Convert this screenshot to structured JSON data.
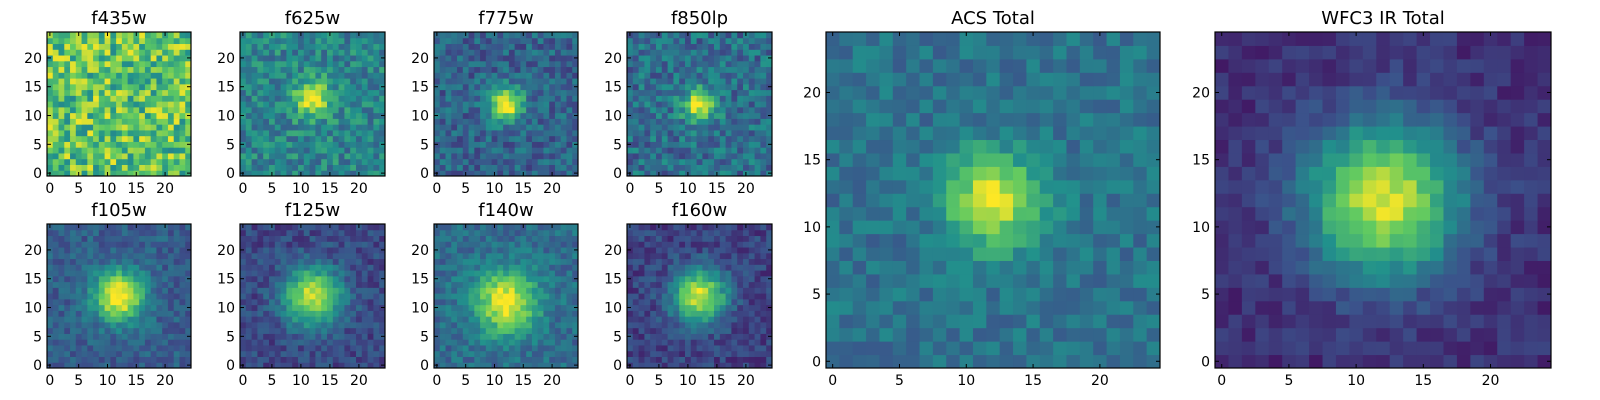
{
  "figure": {
    "colormap": "viridis",
    "viridis_stops": [
      "#440154",
      "#3b528b",
      "#21918c",
      "#5ec962",
      "#fde725"
    ],
    "frame_color": "#000000"
  },
  "chart_data": [
    {
      "type": "heatmap",
      "id": "f435w",
      "title": "f435w",
      "grid": 25,
      "xticks": [
        0,
        5,
        10,
        15,
        20
      ],
      "yticks": [
        0,
        5,
        10,
        15,
        20
      ],
      "peak": [
        12,
        12
      ],
      "sigma": 3.0,
      "amplitude": 0.0,
      "background": 0.72,
      "noise": 0.26,
      "seed": 11
    },
    {
      "type": "heatmap",
      "id": "f625w",
      "title": "f625w",
      "grid": 25,
      "xticks": [
        0,
        5,
        10,
        15,
        20
      ],
      "yticks": [
        0,
        5,
        10,
        15,
        20
      ],
      "peak": [
        12,
        13
      ],
      "sigma": 2.2,
      "amplitude": 0.55,
      "background": 0.45,
      "noise": 0.16,
      "seed": 23
    },
    {
      "type": "heatmap",
      "id": "f775w",
      "title": "f775w",
      "grid": 25,
      "xticks": [
        0,
        5,
        10,
        15,
        20
      ],
      "yticks": [
        0,
        5,
        10,
        15,
        20
      ],
      "peak": [
        12,
        12
      ],
      "sigma": 2.0,
      "amplitude": 0.72,
      "background": 0.32,
      "noise": 0.14,
      "seed": 37
    },
    {
      "type": "heatmap",
      "id": "f850lp",
      "title": "f850lp",
      "grid": 25,
      "xticks": [
        0,
        5,
        10,
        15,
        20
      ],
      "yticks": [
        0,
        5,
        10,
        15,
        20
      ],
      "peak": [
        12,
        12
      ],
      "sigma": 2.0,
      "amplitude": 0.6,
      "background": 0.36,
      "noise": 0.16,
      "seed": 41
    },
    {
      "type": "heatmap",
      "id": "f105w",
      "title": "f105w",
      "grid": 25,
      "xticks": [
        0,
        5,
        10,
        15,
        20
      ],
      "yticks": [
        0,
        5,
        10,
        15,
        20
      ],
      "peak": [
        12,
        12
      ],
      "sigma": 3.0,
      "amplitude": 0.75,
      "background": 0.3,
      "noise": 0.1,
      "seed": 53
    },
    {
      "type": "heatmap",
      "id": "f125w",
      "title": "f125w",
      "grid": 25,
      "xticks": [
        0,
        5,
        10,
        15,
        20
      ],
      "yticks": [
        0,
        5,
        10,
        15,
        20
      ],
      "peak": [
        12,
        12
      ],
      "sigma": 3.5,
      "amplitude": 0.7,
      "background": 0.22,
      "noise": 0.1,
      "seed": 61
    },
    {
      "type": "heatmap",
      "id": "f140w",
      "title": "f140w",
      "grid": 25,
      "xticks": [
        0,
        5,
        10,
        15,
        20
      ],
      "yticks": [
        0,
        5,
        10,
        15,
        20
      ],
      "peak": [
        12,
        11
      ],
      "sigma": 3.8,
      "amplitude": 0.65,
      "background": 0.35,
      "noise": 0.11,
      "seed": 71
    },
    {
      "type": "heatmap",
      "id": "f160w",
      "title": "f160w",
      "grid": 25,
      "xticks": [
        0,
        5,
        10,
        15,
        20
      ],
      "yticks": [
        0,
        5,
        10,
        15,
        20
      ],
      "peak": [
        12,
        12
      ],
      "sigma": 3.2,
      "amplitude": 0.75,
      "background": 0.2,
      "noise": 0.1,
      "seed": 83
    },
    {
      "type": "heatmap",
      "id": "acs-total",
      "title": "ACS Total",
      "grid": 25,
      "xticks": [
        0,
        5,
        10,
        15,
        20
      ],
      "yticks": [
        0,
        5,
        10,
        15,
        20
      ],
      "peak": [
        12,
        12
      ],
      "sigma": 2.4,
      "amplitude": 0.6,
      "background": 0.38,
      "noise": 0.1,
      "seed": 97
    },
    {
      "type": "heatmap",
      "id": "wfc3-ir-total",
      "title": "WFC3 IR Total",
      "grid": 25,
      "xticks": [
        0,
        5,
        10,
        15,
        20
      ],
      "yticks": [
        0,
        5,
        10,
        15,
        20
      ],
      "peak": [
        12,
        12
      ],
      "sigma": 4.0,
      "amplitude": 0.8,
      "background": 0.14,
      "noise": 0.07,
      "seed": 103
    }
  ]
}
